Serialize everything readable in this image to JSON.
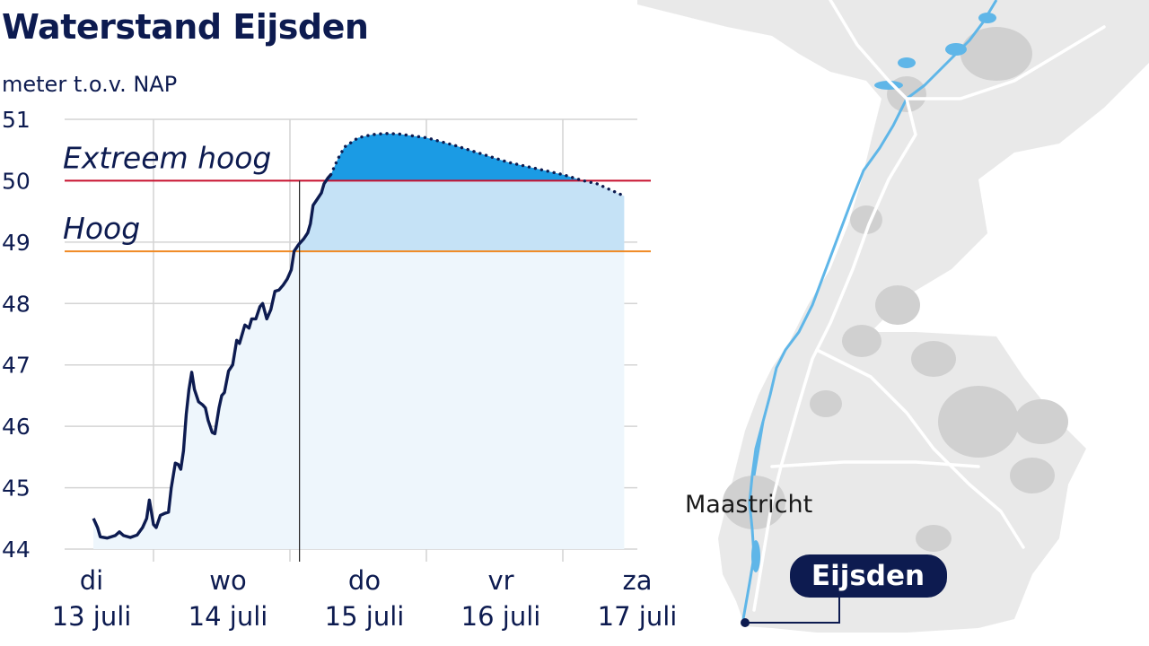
{
  "header": {
    "title": "Waterstand Eijsden",
    "unit": "meter t.o.v. NAP"
  },
  "chart_data": {
    "type": "line",
    "title": "Waterstand Eijsden",
    "ylabel": "meter t.o.v. NAP",
    "ylim": [
      44,
      51
    ],
    "xlim": [
      0,
      4.2
    ],
    "yticks": [
      44,
      45,
      46,
      47,
      48,
      49,
      50,
      51
    ],
    "x_ticks": [
      {
        "x": 0,
        "day": "di",
        "date": "13 juli"
      },
      {
        "x": 1,
        "day": "wo",
        "date": "14 juli"
      },
      {
        "x": 2,
        "day": "do",
        "date": "15 juli"
      },
      {
        "x": 3,
        "day": "vr",
        "date": "16 juli"
      },
      {
        "x": 4,
        "day": "za",
        "date": "17 juli"
      }
    ],
    "thresholds": [
      {
        "label": "Extreem hoog",
        "value": 50.0,
        "color": "#c8102e"
      },
      {
        "label": "Hoog",
        "value": 48.85,
        "color": "#f08a24"
      }
    ],
    "now_x": 1.57,
    "series": [
      {
        "role": "measured",
        "points": [
          [
            0.06,
            44.5
          ],
          [
            0.09,
            44.35
          ],
          [
            0.11,
            44.2
          ],
          [
            0.16,
            44.18
          ],
          [
            0.22,
            44.22
          ],
          [
            0.25,
            44.28
          ],
          [
            0.28,
            44.22
          ],
          [
            0.33,
            44.19
          ],
          [
            0.38,
            44.23
          ],
          [
            0.42,
            44.35
          ],
          [
            0.45,
            44.5
          ],
          [
            0.47,
            44.8
          ],
          [
            0.5,
            44.4
          ],
          [
            0.52,
            44.35
          ],
          [
            0.55,
            44.55
          ],
          [
            0.58,
            44.58
          ],
          [
            0.61,
            44.6
          ],
          [
            0.63,
            45.0
          ],
          [
            0.66,
            45.4
          ],
          [
            0.68,
            45.38
          ],
          [
            0.7,
            45.3
          ],
          [
            0.72,
            45.6
          ],
          [
            0.74,
            46.2
          ],
          [
            0.76,
            46.6
          ],
          [
            0.78,
            46.88
          ],
          [
            0.8,
            46.6
          ],
          [
            0.83,
            46.4
          ],
          [
            0.86,
            46.35
          ],
          [
            0.88,
            46.3
          ],
          [
            0.9,
            46.1
          ],
          [
            0.93,
            45.9
          ],
          [
            0.95,
            45.88
          ],
          [
            0.98,
            46.3
          ],
          [
            1.0,
            46.5
          ],
          [
            1.02,
            46.55
          ],
          [
            1.05,
            46.9
          ],
          [
            1.08,
            47.0
          ],
          [
            1.11,
            47.4
          ],
          [
            1.13,
            47.35
          ],
          [
            1.15,
            47.5
          ],
          [
            1.17,
            47.65
          ],
          [
            1.2,
            47.6
          ],
          [
            1.22,
            47.75
          ],
          [
            1.25,
            47.75
          ],
          [
            1.28,
            47.95
          ],
          [
            1.3,
            48.0
          ],
          [
            1.33,
            47.75
          ],
          [
            1.36,
            47.9
          ],
          [
            1.39,
            48.2
          ],
          [
            1.42,
            48.22
          ],
          [
            1.45,
            48.3
          ],
          [
            1.48,
            48.4
          ],
          [
            1.51,
            48.55
          ],
          [
            1.53,
            48.85
          ],
          [
            1.56,
            48.95
          ],
          [
            1.6,
            49.05
          ],
          [
            1.63,
            49.15
          ],
          [
            1.65,
            49.3
          ],
          [
            1.67,
            49.6
          ],
          [
            1.7,
            49.7
          ],
          [
            1.73,
            49.8
          ],
          [
            1.75,
            49.95
          ],
          [
            1.78,
            50.05
          ],
          [
            1.8,
            50.1
          ]
        ]
      },
      {
        "role": "forecast",
        "points": [
          [
            1.8,
            50.1
          ],
          [
            1.85,
            50.35
          ],
          [
            1.9,
            50.55
          ],
          [
            2.0,
            50.7
          ],
          [
            2.1,
            50.75
          ],
          [
            2.2,
            50.77
          ],
          [
            2.3,
            50.76
          ],
          [
            2.5,
            50.7
          ],
          [
            2.7,
            50.58
          ],
          [
            2.9,
            50.44
          ],
          [
            3.1,
            50.3
          ],
          [
            3.3,
            50.2
          ],
          [
            3.5,
            50.1
          ],
          [
            3.65,
            50.0
          ],
          [
            3.75,
            49.95
          ],
          [
            3.85,
            49.85
          ],
          [
            3.95,
            49.75
          ]
        ]
      }
    ]
  },
  "map": {
    "place_city": "Maastricht",
    "place_marker": "Eijsden",
    "colors": {
      "land": "#e9e9e9",
      "urban": "#cfcfcf",
      "water": "#5fb6e8",
      "road": "#ffffff",
      "marker": "#0d1b50"
    }
  }
}
